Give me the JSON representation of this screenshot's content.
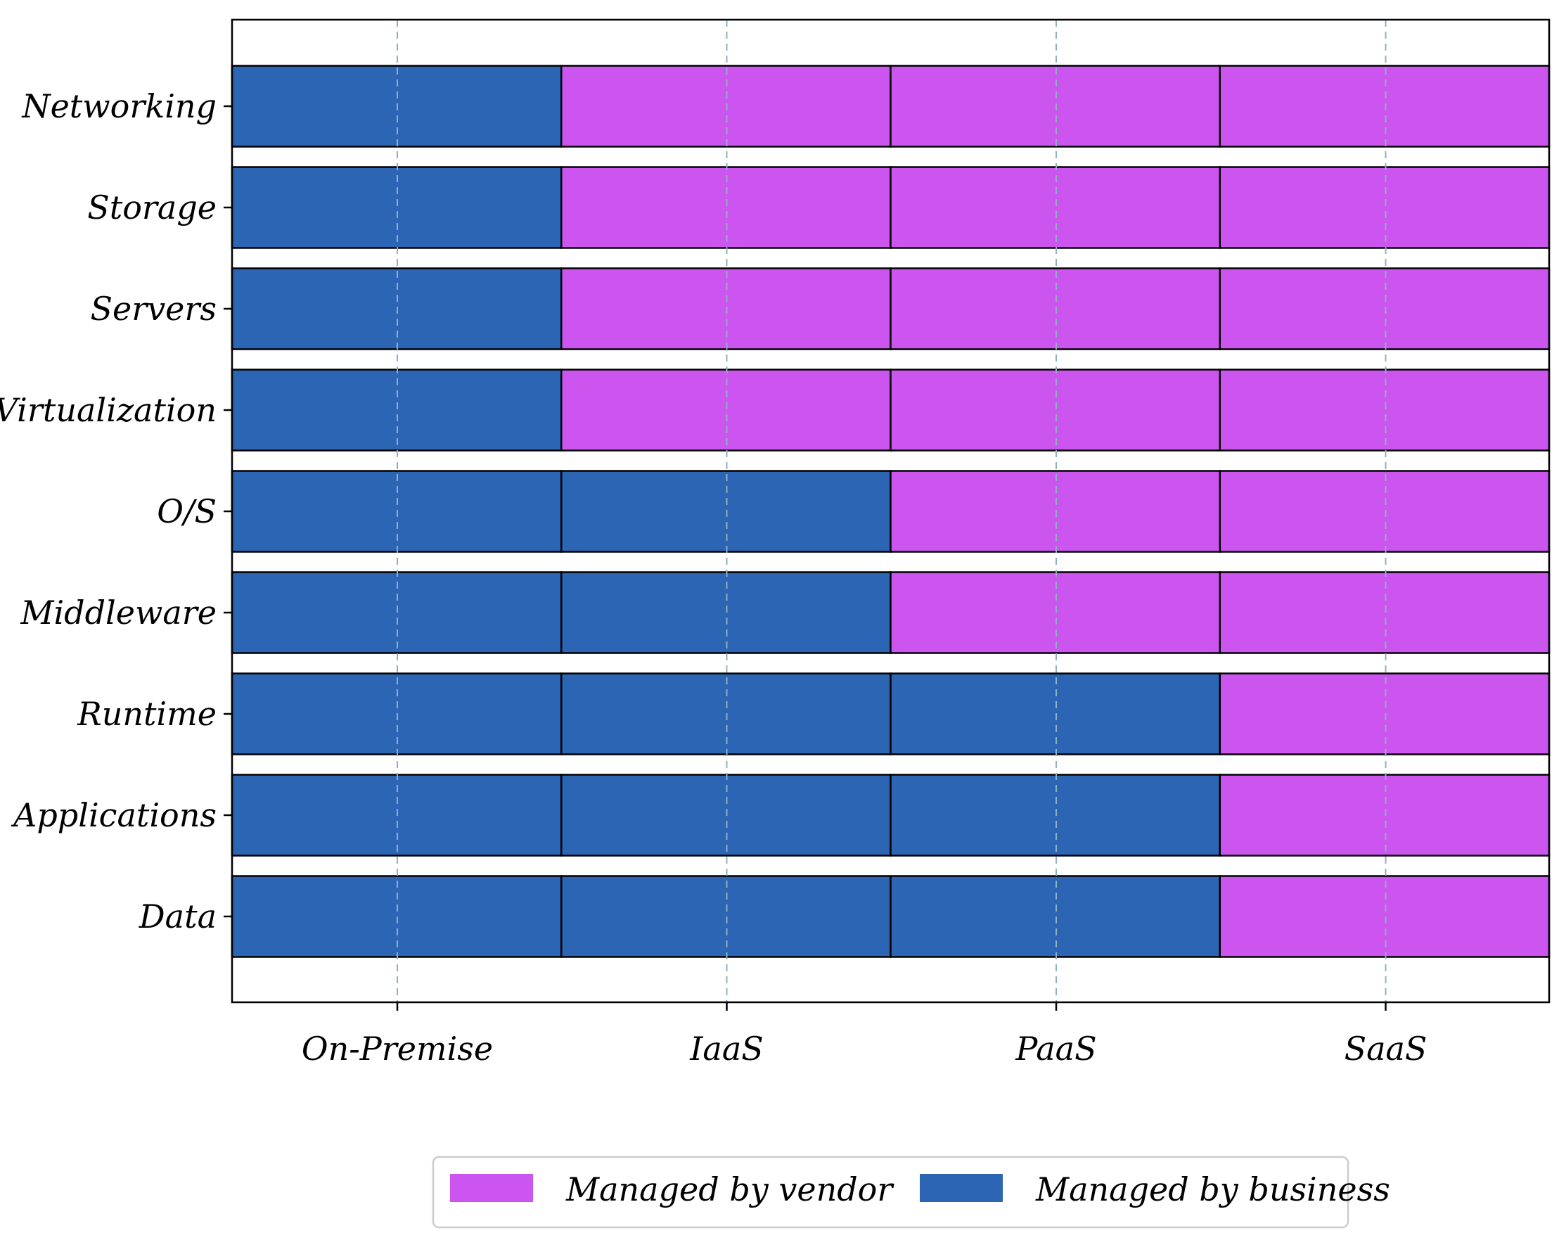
{
  "chart_data": {
    "type": "heatmap",
    "x_categories": [
      "On-Premise",
      "IaaS",
      "PaaS",
      "SaaS"
    ],
    "y_categories": [
      "Networking",
      "Storage",
      "Servers",
      "Virtualization",
      "O/S",
      "Middleware",
      "Runtime",
      "Applications",
      "Data"
    ],
    "cells": [
      [
        "business",
        "vendor",
        "vendor",
        "vendor"
      ],
      [
        "business",
        "vendor",
        "vendor",
        "vendor"
      ],
      [
        "business",
        "vendor",
        "vendor",
        "vendor"
      ],
      [
        "business",
        "vendor",
        "vendor",
        "vendor"
      ],
      [
        "business",
        "business",
        "vendor",
        "vendor"
      ],
      [
        "business",
        "business",
        "vendor",
        "vendor"
      ],
      [
        "business",
        "business",
        "business",
        "vendor"
      ],
      [
        "business",
        "business",
        "business",
        "vendor"
      ],
      [
        "business",
        "business",
        "business",
        "vendor"
      ]
    ],
    "legend": {
      "placement": "bottom-center",
      "entries": [
        {
          "key": "vendor",
          "label": "Managed by vendor",
          "color": "#cc55f0"
        },
        {
          "key": "business",
          "label": "Managed by business",
          "color": "#2b65b4"
        }
      ]
    },
    "colors": {
      "vendor": "#cc55f0",
      "business": "#2b65b4",
      "grid": "#8fb0c0",
      "border": "#000000"
    },
    "grid": true,
    "title": "",
    "xlabel": "",
    "ylabel": ""
  }
}
